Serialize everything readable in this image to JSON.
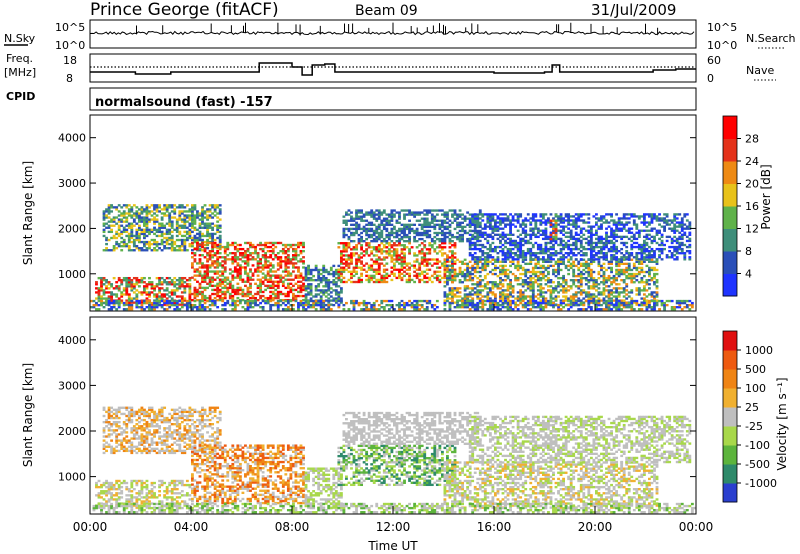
{
  "header": {
    "station": "Prince George (fitACF)",
    "beam": "Beam 09",
    "date": "31/Jul/2009"
  },
  "panels": {
    "noise": {
      "left_label": "N.Sky",
      "right_label": "N.Search",
      "left_ticks": [
        "10^5",
        "10^0"
      ],
      "right_ticks": [
        "10^5",
        "10^0"
      ]
    },
    "freq": {
      "left_label_line1": "Freq.",
      "left_label_line2": "[MHz]",
      "right_label": "Nave",
      "left_ticks": [
        "18",
        "8"
      ],
      "right_ticks": [
        "60",
        "0"
      ]
    },
    "cpid": {
      "label": "CPID",
      "text": "normalsound (fast) -157"
    }
  },
  "chart_data": [
    {
      "type": "heatmap",
      "name": "power",
      "ylabel": "Slant Range [km]",
      "xlabel": "",
      "xlim": [
        "00:00",
        "24:00"
      ],
      "ylim": [
        180,
        4500
      ],
      "y_ticks": [
        "1000",
        "2000",
        "3000",
        "4000"
      ],
      "colorbar": {
        "label": "Power [dB]",
        "ticks": [
          "4",
          "8",
          "12",
          "16",
          "20",
          "24",
          "28"
        ],
        "colors": [
          "#1f34ff",
          "#2a4fb8",
          "#3e8e7a",
          "#5fb24a",
          "#e8c21a",
          "#ee8a14",
          "#e4321a",
          "#ff0000"
        ]
      }
    },
    {
      "type": "heatmap",
      "name": "velocity",
      "ylabel": "Slant Range [km]",
      "xlabel": "Time UT",
      "xlim": [
        "00:00",
        "24:00"
      ],
      "ylim": [
        180,
        4500
      ],
      "x_ticks": [
        "00:00",
        "04:00",
        "08:00",
        "12:00",
        "16:00",
        "20:00",
        "00:00"
      ],
      "y_ticks": [
        "1000",
        "2000",
        "3000",
        "4000"
      ],
      "colorbar": {
        "label": "Velocity [m s⁻¹]",
        "ticks": [
          "1000",
          "500",
          "100",
          "25",
          "-25",
          "-100",
          "-500",
          "-1000"
        ],
        "colors": [
          "#2a3fcf",
          "#2e8a6a",
          "#5cb43c",
          "#a8d84a",
          "#bfbfbf",
          "#f0b030",
          "#ef8414",
          "#ee5a10",
          "#e01010"
        ]
      }
    }
  ]
}
